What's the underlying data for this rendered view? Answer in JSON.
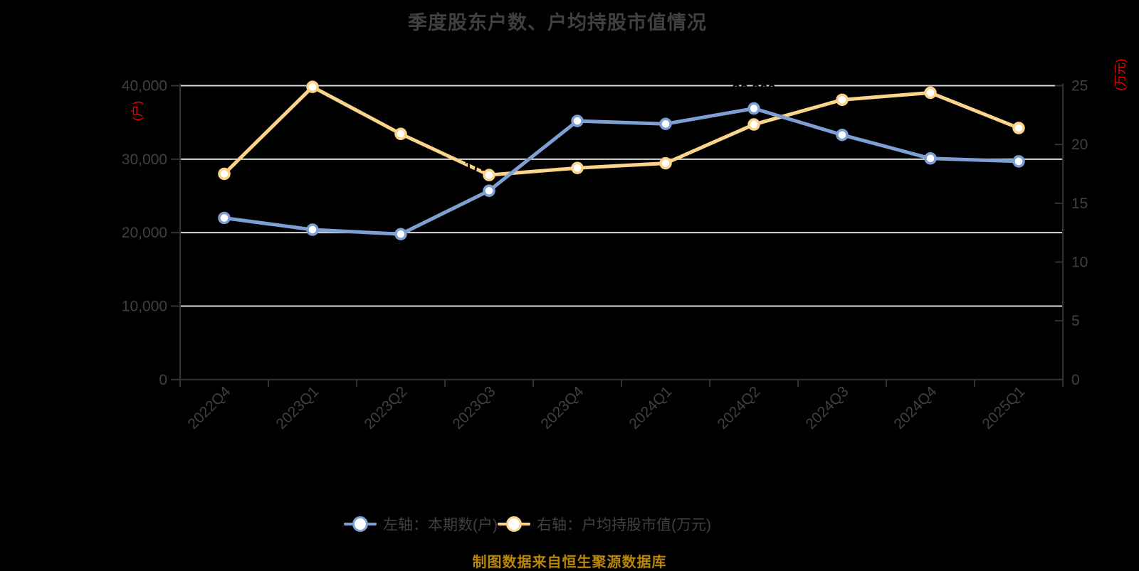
{
  "page": {
    "background": "#000000"
  },
  "title": "季度股东户数、户均持股市值情况",
  "source_note": "制图数据来自恒生聚源数据库",
  "axes": {
    "left_unit": "(户)",
    "right_unit": "(万元)",
    "unit_color": "#ff0000",
    "left_ticks": [
      "0",
      "10,000",
      "20,000",
      "30,000",
      "40,000"
    ],
    "right_ticks": [
      "0",
      "5",
      "10",
      "15",
      "20",
      "25"
    ]
  },
  "legend": {
    "items": [
      {
        "label": "左轴：本期数(户)",
        "color": "#7e9fd4"
      },
      {
        "label": "右轴：户均持股市值(万元)",
        "color": "#fbd38b"
      }
    ]
  },
  "chart_data": {
    "type": "line",
    "title": "季度股东户数、户均持股市值情况",
    "categories": [
      "2022Q4",
      "2023Q1",
      "2023Q2",
      "2023Q3",
      "2023Q4",
      "2024Q1",
      "2024Q2",
      "2024Q3",
      "2024Q4",
      "2025Q1"
    ],
    "series": [
      {
        "name": "左轴：本期数(户)",
        "axis": "left",
        "color": "#7e9fd4",
        "values": [
          22000,
          20400,
          19800,
          25700,
          35200,
          34800,
          36900,
          33300,
          30100,
          29700
        ]
      },
      {
        "name": "右轴：户均持股市值(万元)",
        "axis": "right",
        "color": "#fbd38b",
        "values": [
          17.5,
          24.9,
          20.9,
          17.4,
          18.0,
          18.4,
          21.7,
          23.8,
          24.4,
          21.4
        ]
      }
    ],
    "left_axis": {
      "label": "(户)",
      "min": 0,
      "max": 40000,
      "tick_step": 10000
    },
    "right_axis": {
      "label": "(万元)",
      "min": 0,
      "max": 25,
      "tick_step": 5
    },
    "annotations": [
      {
        "series": 0,
        "point": "max",
        "text": "36,900",
        "color": "#000000"
      },
      {
        "series": 1,
        "point": "min",
        "text": "17.4",
        "color": "#000000"
      }
    ],
    "grid": true,
    "legend_position": "bottom",
    "marker": "circle-white-fill"
  }
}
